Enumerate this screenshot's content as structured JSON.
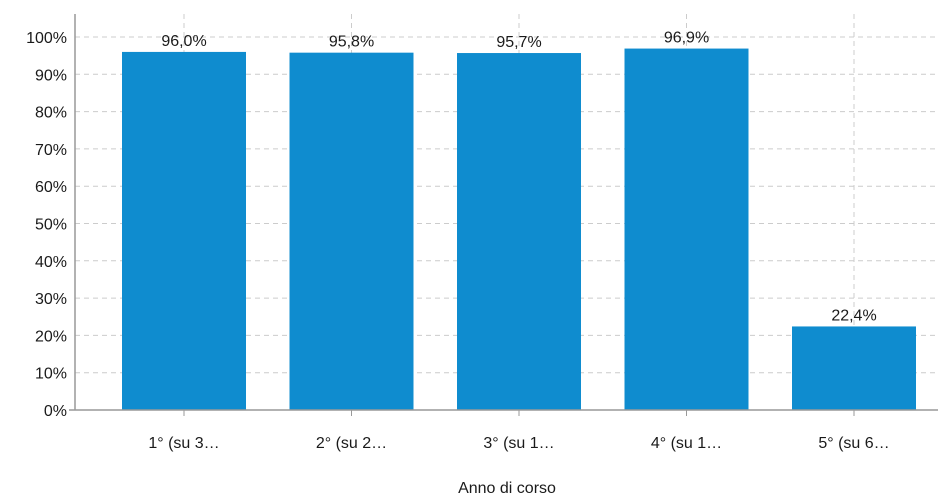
{
  "chart_data": {
    "type": "bar",
    "categories": [
      "1° (su 3…",
      "2° (su 2…",
      "3° (su 1…",
      "4° (su 1…",
      "5° (su 6…"
    ],
    "values": [
      96.0,
      95.8,
      95.7,
      96.9,
      22.4
    ],
    "value_labels": [
      "96,0%",
      "95,8%",
      "95,7%",
      "96,9%",
      "22,4%"
    ],
    "title": "",
    "xlabel": "Anno di corso",
    "ylabel": "",
    "ylim": [
      0,
      100
    ],
    "yticks": [
      0,
      10,
      20,
      30,
      40,
      50,
      60,
      70,
      80,
      90,
      100
    ],
    "ytick_labels": [
      "0%",
      "10%",
      "20%",
      "30%",
      "40%",
      "50%",
      "60%",
      "70%",
      "80%",
      "90%",
      "100%"
    ],
    "grid": true,
    "colors": {
      "bar": "#0f8ccf",
      "grid": "#cccccc",
      "axis": "#999999"
    }
  }
}
